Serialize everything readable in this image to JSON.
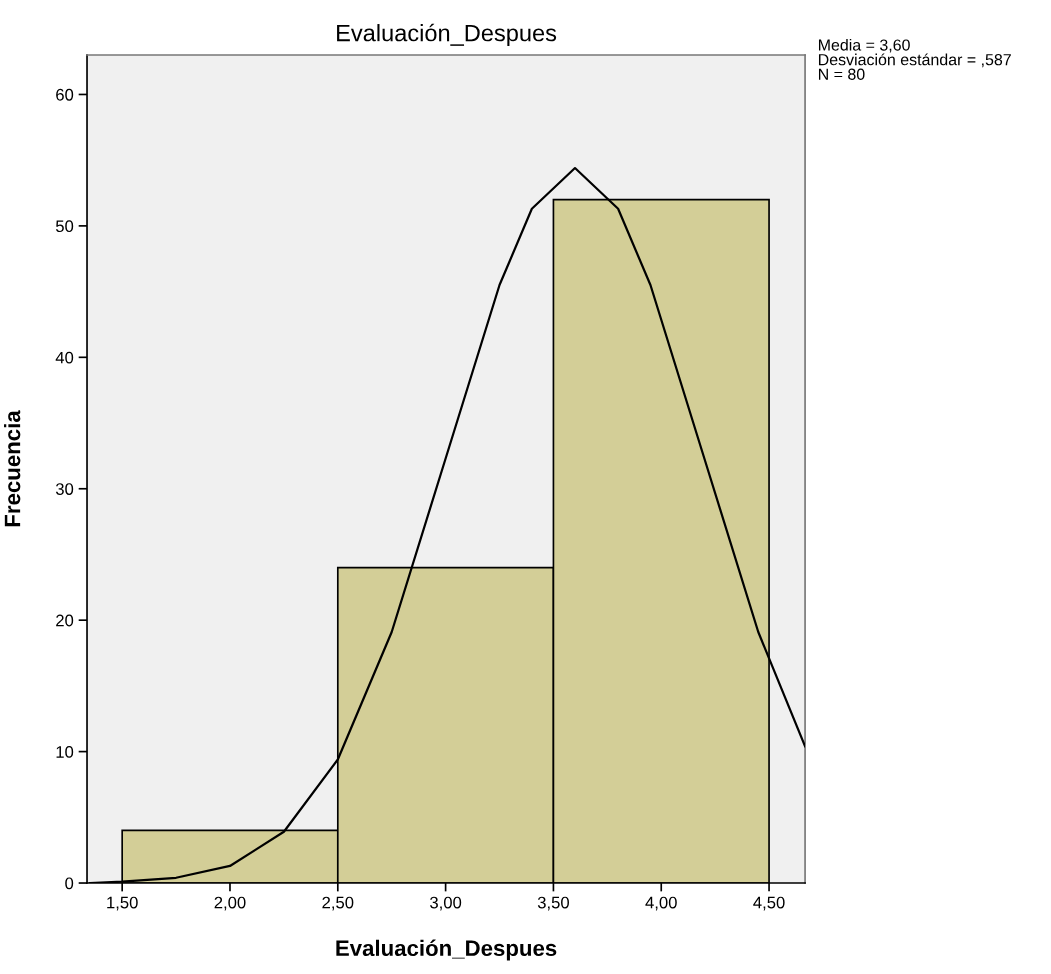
{
  "chart_data": {
    "type": "histogram",
    "title": "Evaluación_Despues",
    "xlabel": "Evaluación_Despues",
    "ylabel": "Frecuencia",
    "bins": [
      1.5,
      2.5,
      3.5,
      4.5
    ],
    "values": [
      4,
      24,
      52
    ],
    "color": "#d3ce97",
    "series": [
      {
        "type": "line",
        "color": "#000000",
        "x": [
          1.35,
          1.5,
          1.75,
          2.0,
          2.25,
          2.5,
          2.75,
          3.0,
          3.25,
          3.4,
          3.6,
          3.8,
          3.95,
          4.2,
          4.45,
          4.667
        ],
        "values": [
          0.0,
          0.1,
          0.4,
          1.3,
          3.9,
          9.4,
          19.1,
          32.3,
          45.5,
          51.3,
          54.4,
          51.3,
          45.5,
          32.3,
          19.1,
          10.4
        ]
      }
    ],
    "xlim": [
      1.337,
      4.667
    ],
    "ylim": [
      0,
      63
    ],
    "xticks": [
      {
        "value": 1.5,
        "label": "1,50"
      },
      {
        "value": 2.0,
        "label": "2,00"
      },
      {
        "value": 2.5,
        "label": "2,50"
      },
      {
        "value": 3.0,
        "label": "3,00"
      },
      {
        "value": 3.5,
        "label": "3,50"
      },
      {
        "value": 4.0,
        "label": "4,00"
      },
      {
        "value": 4.5,
        "label": "4,50"
      }
    ],
    "yticks": [
      0,
      10,
      20,
      30,
      40,
      50,
      60
    ],
    "annotations": [
      "Media = 3,60",
      "Desviación estándar = ,587",
      "N = 80"
    ],
    "grid": false,
    "legend": false
  }
}
